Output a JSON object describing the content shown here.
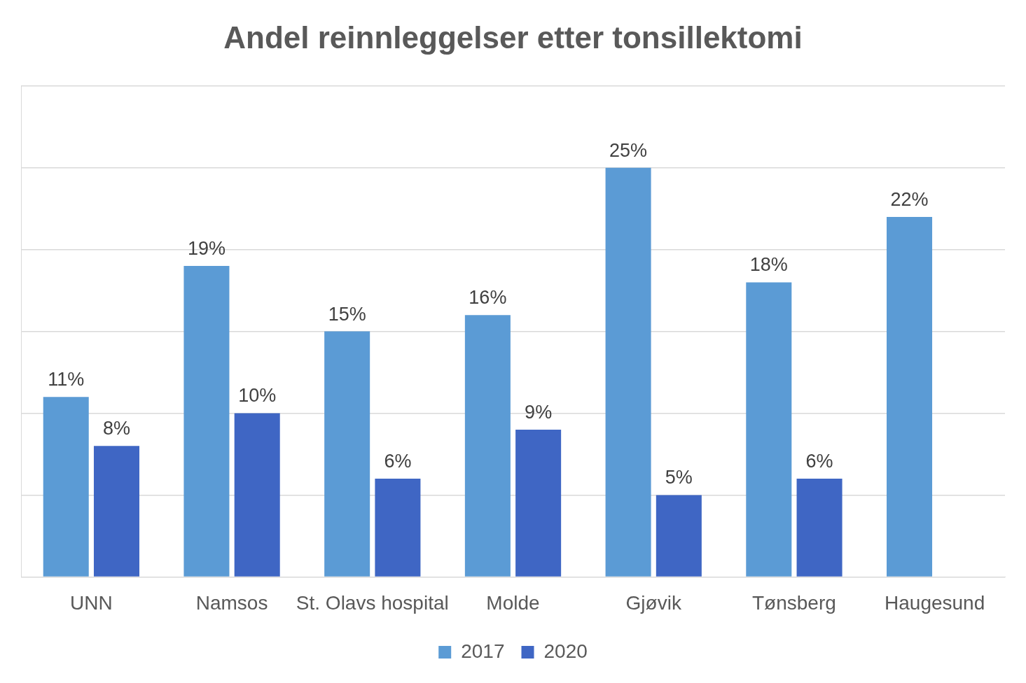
{
  "chart_data": {
    "type": "bar",
    "title": "Andel reinnleggelser etter tonsillektomi",
    "categories": [
      "UNN",
      "Namsos",
      "St. Olavs hospital",
      "Molde",
      "Gjøvik",
      "Tønsberg",
      "Haugesund"
    ],
    "series": [
      {
        "name": "2017",
        "color": "#5b9bd5",
        "values": [
          11,
          19,
          15,
          16,
          25,
          18,
          22
        ],
        "value_labels": [
          "11%",
          "19%",
          "15%",
          "16%",
          "25%",
          "18%",
          "22%"
        ]
      },
      {
        "name": "2020",
        "color": "#3f66c4",
        "values": [
          8,
          10,
          6,
          9,
          5,
          6,
          null
        ],
        "value_labels": [
          "8%",
          "10%",
          "6%",
          "9%",
          "5%",
          "6%",
          null
        ]
      }
    ],
    "ylim": [
      0,
      30
    ],
    "yticks": [
      0,
      5,
      10,
      15,
      20,
      25,
      30
    ],
    "grid": true,
    "legend": "bottom",
    "data_labels": true,
    "tick_labels": "x"
  }
}
